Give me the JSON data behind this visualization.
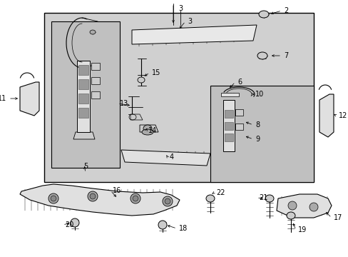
{
  "bg_color": "#ffffff",
  "box_bg": "#d8d8d8",
  "figsize": [
    4.89,
    3.6
  ],
  "dpi": 100,
  "fontsize": 7.0
}
